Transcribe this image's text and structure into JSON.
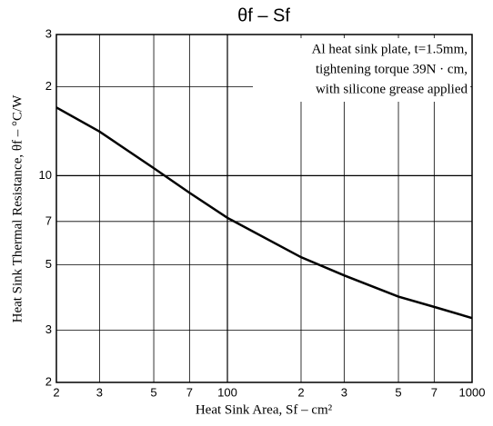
{
  "chart_data": {
    "type": "line",
    "title": "θf – Sf",
    "x_label": "Heat Sink Area, Sf – cm²",
    "y_label": "Heat Sink Thermal Resistance, θf – °C/W",
    "annotation": [
      "Al heat sink plate, t=1.5mm,",
      "tightening torque 39N · cm,",
      "with silicone grease applied"
    ],
    "x": [
      20,
      30,
      50,
      70,
      100,
      200,
      300,
      500,
      700,
      1000
    ],
    "series": [
      {
        "name": "θf",
        "color": "#000000",
        "values": [
          17,
          14.1,
          10.6,
          8.75,
          7.2,
          5.3,
          4.6,
          3.9,
          3.6,
          3.3
        ]
      }
    ],
    "xscale": "log",
    "yscale": "log",
    "xlim": [
      20,
      1000
    ],
    "ylim": [
      2,
      30
    ],
    "xticks": [
      {
        "value": 20,
        "label": "2"
      },
      {
        "value": 30,
        "label": "3"
      },
      {
        "value": 50,
        "label": "5"
      },
      {
        "value": 70,
        "label": "7"
      },
      100,
      {
        "value": 200,
        "label": "2"
      },
      {
        "value": 300,
        "label": "3"
      },
      {
        "value": 500,
        "label": "5"
      },
      {
        "value": 700,
        "label": "7"
      },
      1000
    ],
    "yticks": [
      2,
      3,
      5,
      7,
      10,
      {
        "value": 20,
        "label": "2"
      },
      {
        "value": 30,
        "label": "3"
      }
    ],
    "grid": true
  }
}
